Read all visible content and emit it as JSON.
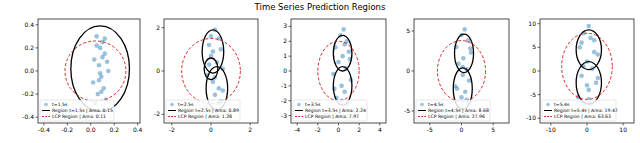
{
  "title": "Time Series Prediction Regions",
  "chart_data": [
    {
      "type": "scatter",
      "xlim": [
        -0.45,
        0.42
      ],
      "ylim": [
        -0.45,
        0.45
      ],
      "xticks": [
        -0.4,
        -0.2,
        {
          "value": 0,
          "label": "0.0"
        },
        0.2,
        0.4
      ],
      "yticks": [
        -0.4,
        -0.2,
        {
          "value": 0,
          "label": "0.0"
        },
        0.2,
        0.4
      ],
      "legend": "lower left",
      "series": [
        {
          "name": "t=1.5s",
          "color": "#1f77b4",
          "marker": "circle",
          "x": [
            0.05,
            0.1,
            0.08,
            0.12,
            0.03,
            0.07,
            0.15,
            0.09,
            0.02,
            0.11,
            0.06,
            0.13,
            0.04,
            0.1,
            0.08,
            0.14,
            0.05,
            0.09,
            0.12,
            0.07
          ],
          "values": [
            0.3,
            0.25,
            0.2,
            0.15,
            0.1,
            0.05,
            0.0,
            -0.05,
            -0.1,
            -0.15,
            -0.2,
            -0.25,
            -0.28,
            0.12,
            -0.02,
            0.08,
            0.22,
            -0.18,
            0.28,
            -0.08
          ]
        }
      ],
      "regions": {
        "name": "Region t=1.5s | Area: 0.15",
        "color": "#000000",
        "ellipses": [
          {
            "cx": 0.08,
            "cy": 0.02,
            "rx": 0.25,
            "ry": 0.37
          }
        ]
      },
      "lcp": {
        "name": "LCP Region | Area: 0.11",
        "color": "#d62728",
        "line_style": "dashed",
        "cx": 0.04,
        "cy": 0.0,
        "r": 0.26
      }
    },
    {
      "type": "scatter",
      "xlim": [
        -2.4,
        2.4
      ],
      "ylim": [
        -2.4,
        2.4
      ],
      "xticks": [
        -2,
        0,
        2
      ],
      "yticks": [
        -2,
        0,
        2
      ],
      "legend": "lower left",
      "series": [
        {
          "name": "t=2.5s",
          "color": "#1f77b4",
          "marker": "circle",
          "x": [
            0.2,
            0.4,
            -0.1,
            0.5,
            0.0,
            0.3,
            0.6,
            -0.2,
            0.1,
            0.4,
            0.2,
            0.5,
            -0.3,
            0.3,
            0.0,
            0.6,
            0.1,
            0.4,
            -0.1,
            0.2
          ],
          "values": [
            1.9,
            1.5,
            1.2,
            1.0,
            0.7,
            0.4,
            0.1,
            -0.2,
            -0.5,
            -0.8,
            -1.1,
            -1.4,
            -1.7,
            -2.0,
            1.6,
            -0.9,
            0.9,
            -1.5,
            0.3,
            -0.3
          ]
        }
      ],
      "regions": {
        "name": "Region t=2.5s | Area: 0.89",
        "color": "#000000",
        "ellipses": [
          {
            "cx": 0.1,
            "cy": 0.9,
            "rx": 0.55,
            "ry": 1.0
          },
          {
            "cx": 0.3,
            "cy": -0.8,
            "rx": 0.55,
            "ry": 1.0
          },
          {
            "cx": 0.0,
            "cy": 0.1,
            "rx": 0.35,
            "ry": 0.5
          }
        ]
      },
      "lcp": {
        "name": "LCP Region | Area: 1.28",
        "color": "#d62728",
        "line_style": "dashed",
        "cx": 0.0,
        "cy": 0.0,
        "r": 1.5
      }
    },
    {
      "type": "scatter",
      "xlim": [
        -4.6,
        4.6
      ],
      "ylim": [
        -3.5,
        3.5
      ],
      "xticks": [
        -4,
        -2,
        0,
        2,
        4
      ],
      "yticks": [
        -3,
        -2,
        -1,
        0,
        1,
        2,
        3
      ],
      "legend": "lower left",
      "series": [
        {
          "name": "t=3.5s",
          "color": "#1f77b4",
          "marker": "circle",
          "x": [
            0.5,
            0.2,
            0.8,
            -0.3,
            1.0,
            0.4,
            0.0,
            0.7,
            -0.5,
            1.2,
            0.3,
            0.6,
            -0.2,
            0.9,
            0.4,
            0.1,
            1.1,
            -0.4,
            0.6,
            0.3
          ],
          "values": [
            2.8,
            2.4,
            2.0,
            1.6,
            1.3,
            1.0,
            0.6,
            0.2,
            -0.2,
            -0.6,
            -1.0,
            -1.4,
            -1.8,
            -2.2,
            -2.6,
            -3.0,
            0.8,
            -1.2,
            1.8,
            -2.0
          ]
        }
      ],
      "regions": {
        "name": "Region t=3.5s | Area: 2.24",
        "color": "#000000",
        "ellipses": [
          {
            "cx": 0.4,
            "cy": 1.2,
            "rx": 0.9,
            "ry": 1.2
          },
          {
            "cx": 0.4,
            "cy": -1.0,
            "rx": 0.9,
            "ry": 1.3
          }
        ]
      },
      "lcp": {
        "name": "LCP Region | Area: 7.97",
        "color": "#d62728",
        "line_style": "dashed",
        "cx": 0.0,
        "cy": 0.0,
        "r": 2.0
      }
    },
    {
      "type": "scatter",
      "xlim": [
        -7.5,
        7.5
      ],
      "ylim": [
        -6.5,
        6.5
      ],
      "xticks": [
        -5,
        0,
        5
      ],
      "yticks": [
        -5,
        0,
        5
      ],
      "legend": "lower left",
      "series": [
        {
          "name": "t=4.5s",
          "color": "#1f77b4",
          "marker": "circle",
          "x": [
            0.5,
            0.0,
            1.0,
            -0.8,
            1.5,
            0.3,
            -0.5,
            0.8,
            0.2,
            1.2,
            -1.0,
            0.6,
            0.0,
            1.0,
            -0.4,
            0.5,
            1.4,
            -0.7,
            0.2,
            0.8
          ],
          "values": [
            5.2,
            4.5,
            3.8,
            3.0,
            2.3,
            1.6,
            0.9,
            0.2,
            -0.5,
            -1.2,
            -1.9,
            -2.6,
            -3.3,
            -4.0,
            -4.7,
            -5.4,
            2.8,
            -2.2,
            0.5,
            -3.6
          ]
        }
      ],
      "regions": {
        "name": "Region t=4.5s | Area: 8.68",
        "color": "#000000",
        "ellipses": [
          {
            "cx": 0.4,
            "cy": 2.2,
            "rx": 1.5,
            "ry": 2.4
          },
          {
            "cx": 0.2,
            "cy": -2.2,
            "rx": 1.5,
            "ry": 2.6
          }
        ]
      },
      "lcp": {
        "name": "LCP Region | Area: 27.96",
        "color": "#d62728",
        "line_style": "dashed",
        "cx": 0.0,
        "cy": 0.0,
        "r": 3.8
      }
    },
    {
      "type": "scatter",
      "xlim": [
        -13,
        13
      ],
      "ylim": [
        -11,
        11
      ],
      "xticks": [
        -10,
        0,
        10
      ],
      "yticks": [
        -10,
        -5,
        0,
        5,
        10
      ],
      "legend": "lower left",
      "series": [
        {
          "name": "t=5.4s",
          "color": "#1f77b4",
          "marker": "circle",
          "x": [
            0.5,
            -1.0,
            2.0,
            -2.0,
            3.0,
            0.0,
            1.5,
            -1.5,
            2.5,
            0.5,
            -2.5,
            1.0,
            -0.5,
            2.0,
            0.0,
            1.0,
            -1.0,
            3.0,
            0.5,
            -1.5
          ],
          "values": [
            9.5,
            8.0,
            6.5,
            5.0,
            3.5,
            2.0,
            0.5,
            -1.0,
            -2.5,
            -4.0,
            -5.5,
            -7.0,
            -8.0,
            4.0,
            -3.0,
            7.0,
            1.0,
            -1.5,
            -6.0,
            6.0
          ]
        }
      ],
      "regions": {
        "name": "Region t=5.4s | Area: 19.47",
        "color": "#000000",
        "ellipses": [
          {
            "cx": 0.5,
            "cy": 4.5,
            "rx": 3.5,
            "ry": 4.2
          },
          {
            "cx": 0.5,
            "cy": -2.5,
            "rx": 3.5,
            "ry": 4.5
          }
        ]
      },
      "lcp": {
        "name": "LCP Region | Area: 63.63",
        "color": "#d62728",
        "line_style": "dashed",
        "cx": 0.0,
        "cy": 1.0,
        "r": 7.0
      }
    }
  ]
}
